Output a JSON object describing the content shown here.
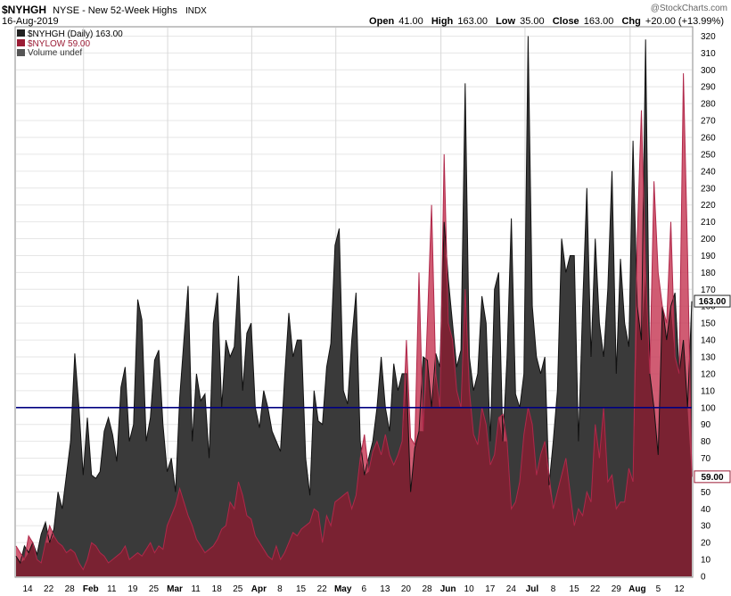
{
  "header": {
    "symbol": "$NYHGH",
    "description": "NYSE - New 52-Week Highs",
    "exchange": "INDX",
    "date": "16-Aug-2019",
    "watermark": "@StockCharts.com",
    "open_label": "Open",
    "open_value": "41.00",
    "high_label": "High",
    "high_value": "163.00",
    "low_label": "Low",
    "low_value": "35.00",
    "close_label": "Close",
    "close_value": "163.00",
    "chg_label": "Chg",
    "chg_value": "+20.00 (+13.99%)"
  },
  "legend": {
    "items": [
      {
        "label": "$NYHGH (Daily) 163.00",
        "color": "#222222"
      },
      {
        "label": "$NYLOW 59.00",
        "color": "#9b1c35"
      },
      {
        "label": "Volume undef",
        "color": "#555555"
      }
    ]
  },
  "colors": {
    "highs_fill": "#3a3a3a",
    "lows_fill": "#c8405a",
    "overlap_fill": "#7a2232",
    "reference_line": "#000080",
    "gridline": "#e6e6e6",
    "highs_badge": "#222222",
    "lows_badge": "#9b1c35"
  },
  "chart_data": {
    "type": "area",
    "y_axis": {
      "position": "right",
      "ylim": [
        0,
        325
      ],
      "ticks": [
        0,
        10,
        20,
        30,
        40,
        50,
        60,
        70,
        80,
        90,
        100,
        110,
        120,
        130,
        140,
        150,
        160,
        170,
        180,
        190,
        200,
        210,
        220,
        230,
        240,
        250,
        260,
        270,
        280,
        290,
        300,
        310,
        320
      ]
    },
    "x_tick_labels": [
      {
        "label": "14",
        "bold": false
      },
      {
        "label": "22",
        "bold": false
      },
      {
        "label": "28",
        "bold": false
      },
      {
        "label": "Feb",
        "bold": true
      },
      {
        "label": "11",
        "bold": false
      },
      {
        "label": "19",
        "bold": false
      },
      {
        "label": "25",
        "bold": false
      },
      {
        "label": "Mar",
        "bold": true
      },
      {
        "label": "11",
        "bold": false
      },
      {
        "label": "18",
        "bold": false
      },
      {
        "label": "25",
        "bold": false
      },
      {
        "label": "Apr",
        "bold": true
      },
      {
        "label": "8",
        "bold": false
      },
      {
        "label": "15",
        "bold": false
      },
      {
        "label": "22",
        "bold": false
      },
      {
        "label": "May",
        "bold": true
      },
      {
        "label": "6",
        "bold": false
      },
      {
        "label": "13",
        "bold": false
      },
      {
        "label": "20",
        "bold": false
      },
      {
        "label": "28",
        "bold": false
      },
      {
        "label": "Jun",
        "bold": true
      },
      {
        "label": "10",
        "bold": false
      },
      {
        "label": "17",
        "bold": false
      },
      {
        "label": "24",
        "bold": false
      },
      {
        "label": "Jul",
        "bold": true
      },
      {
        "label": "8",
        "bold": false
      },
      {
        "label": "15",
        "bold": false
      },
      {
        "label": "22",
        "bold": false
      },
      {
        "label": "29",
        "bold": false
      },
      {
        "label": "Aug",
        "bold": true
      },
      {
        "label": "5",
        "bold": false
      },
      {
        "label": "12",
        "bold": false
      }
    ],
    "reference_level": 100,
    "last_values": {
      "highs": "163.00",
      "lows": "59.00"
    },
    "series": [
      {
        "name": "$NYHGH (Daily) 163.00",
        "values": [
          12,
          8,
          18,
          14,
          20,
          13,
          25,
          32,
          20,
          28,
          50,
          40,
          60,
          80,
          132,
          100,
          60,
          94,
          60,
          58,
          62,
          86,
          94,
          84,
          68,
          112,
          124,
          80,
          90,
          164,
          152,
          80,
          94,
          128,
          134,
          90,
          62,
          70,
          50,
          106,
          140,
          172,
          80,
          120,
          104,
          108,
          70,
          150,
          168,
          100,
          140,
          130,
          136,
          178,
          110,
          144,
          150,
          100,
          88,
          110,
          100,
          86,
          80,
          74,
          118,
          156,
          130,
          140,
          140,
          70,
          48,
          110,
          92,
          90,
          124,
          138,
          196,
          206,
          110,
          102,
          140,
          168,
          80,
          60,
          70,
          80,
          100,
          130,
          100,
          86,
          126,
          110,
          120,
          120,
          50,
          76,
          86,
          130,
          128,
          100,
          132,
          124,
          210,
          176,
          150,
          124,
          134,
          292,
          130,
          110,
          120,
          166,
          150,
          80,
          170,
          180,
          80,
          130,
          212,
          108,
          100,
          120,
          320,
          160,
          130,
          120,
          130,
          54,
          80,
          110,
          200,
          180,
          190,
          190,
          80,
          160,
          230,
          130,
          200,
          150,
          130,
          170,
          240,
          120,
          188,
          150,
          136,
          258,
          160,
          140,
          318,
          120,
          100,
          72,
          160,
          140,
          160,
          168,
          120,
          140,
          100,
          163
        ]
      },
      {
        "name": "$NYLOW 59.00",
        "values": [
          18,
          14,
          10,
          24,
          20,
          10,
          8,
          20,
          30,
          24,
          20,
          18,
          14,
          16,
          14,
          8,
          4,
          10,
          20,
          18,
          14,
          12,
          8,
          10,
          12,
          14,
          18,
          10,
          12,
          14,
          12,
          16,
          20,
          14,
          18,
          16,
          30,
          36,
          42,
          52,
          44,
          36,
          30,
          22,
          18,
          14,
          16,
          18,
          22,
          28,
          30,
          44,
          40,
          56,
          48,
          36,
          34,
          24,
          20,
          16,
          12,
          10,
          18,
          10,
          14,
          20,
          26,
          24,
          28,
          30,
          32,
          40,
          38,
          20,
          36,
          30,
          44,
          46,
          48,
          50,
          40,
          48,
          70,
          84,
          62,
          74,
          80,
          72,
          84,
          72,
          66,
          72,
          80,
          140,
          82,
          78,
          180,
          86,
          150,
          220,
          120,
          100,
          250,
          150,
          140,
          110,
          100,
          170,
          110,
          84,
          78,
          100,
          90,
          66,
          72,
          94,
          96,
          80,
          40,
          44,
          56,
          84,
          100,
          90,
          60,
          72,
          80,
          60,
          40,
          50,
          60,
          70,
          50,
          30,
          40,
          36,
          50,
          44,
          90,
          70,
          100,
          56,
          60,
          40,
          44,
          44,
          64,
          56,
          200,
          276,
          180,
          120,
          234,
          180,
          160,
          150,
          210,
          130,
          120,
          298,
          190,
          59
        ]
      }
    ]
  }
}
